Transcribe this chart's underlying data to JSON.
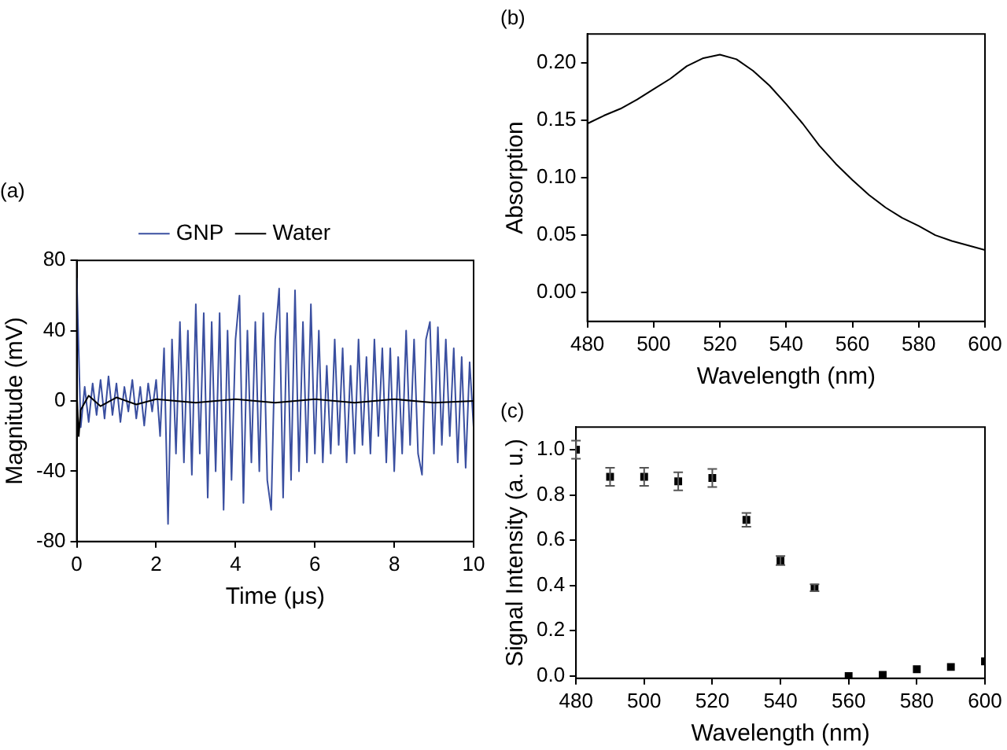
{
  "chart_data": [
    {
      "type": "line",
      "title": "(a)",
      "xlabel": "Time (μs)",
      "ylabel": "Magnitude (mV)",
      "xlim": [
        0,
        10
      ],
      "ylim": [
        -80,
        80
      ],
      "xticks": [
        0,
        2,
        4,
        6,
        8,
        10
      ],
      "yticks": [
        -80,
        -40,
        0,
        40,
        80
      ],
      "grid": false,
      "legend": "top",
      "marker": "none",
      "series": [
        {
          "name": "GNP",
          "color": "#3a4fa0",
          "x": [
            0,
            0.1,
            0.2,
            0.3,
            0.4,
            0.5,
            0.6,
            0.7,
            0.8,
            0.9,
            1,
            1.1,
            1.2,
            1.3,
            1.4,
            1.5,
            1.6,
            1.7,
            1.8,
            1.9,
            2,
            2.1,
            2.2,
            2.3,
            2.4,
            2.5,
            2.6,
            2.7,
            2.8,
            2.9,
            3,
            3.1,
            3.2,
            3.3,
            3.4,
            3.5,
            3.6,
            3.7,
            3.8,
            3.9,
            4,
            4.1,
            4.2,
            4.3,
            4.4,
            4.5,
            4.6,
            4.7,
            4.8,
            4.9,
            5,
            5.1,
            5.2,
            5.3,
            5.4,
            5.5,
            5.6,
            5.7,
            5.8,
            5.9,
            6,
            6.1,
            6.2,
            6.3,
            6.4,
            6.5,
            6.6,
            6.7,
            6.8,
            6.9,
            7,
            7.1,
            7.2,
            7.3,
            7.4,
            7.5,
            7.6,
            7.7,
            7.8,
            7.9,
            8,
            8.1,
            8.2,
            8.3,
            8.4,
            8.5,
            8.6,
            8.7,
            8.8,
            8.9,
            9,
            9.1,
            9.2,
            9.3,
            9.4,
            9.5,
            9.6,
            9.7,
            9.8,
            9.9,
            10
          ],
          "values": [
            70,
            -15,
            8,
            -12,
            10,
            -8,
            12,
            -10,
            14,
            -8,
            10,
            -12,
            8,
            -6,
            12,
            -10,
            8,
            -14,
            10,
            -6,
            12,
            -20,
            30,
            -70,
            35,
            -30,
            45,
            -35,
            40,
            -42,
            55,
            -30,
            50,
            -55,
            45,
            -40,
            50,
            -62,
            40,
            -45,
            35,
            60,
            -58,
            40,
            -35,
            45,
            -40,
            50,
            -45,
            -62,
            35,
            64,
            -55,
            50,
            -45,
            63,
            -40,
            45,
            -35,
            55,
            -30,
            40,
            -35,
            20,
            -30,
            35,
            -25,
            30,
            -35,
            20,
            -30,
            35,
            -25,
            25,
            -30,
            35,
            -20,
            30,
            -35,
            30,
            -40,
            25,
            -30,
            40,
            -25,
            35,
            -30,
            -42,
            35,
            45,
            -30,
            42,
            -25,
            35,
            -20,
            30,
            -35,
            25,
            -38,
            22,
            -15
          ]
        },
        {
          "name": "Water",
          "color": "#000000",
          "x": [
            0,
            0.05,
            0.1,
            0.3,
            0.6,
            1,
            1.5,
            2,
            3,
            4,
            5,
            6,
            7,
            8,
            9,
            10
          ],
          "values": [
            5,
            -20,
            -5,
            3,
            -3,
            2,
            -2,
            1,
            -1,
            1,
            -1,
            1,
            -1,
            1,
            -1,
            0
          ]
        }
      ]
    },
    {
      "type": "line",
      "title": "(b)",
      "xlabel": "Wavelength (nm)",
      "ylabel": "Absorption",
      "xlim": [
        480,
        600
      ],
      "ylim": [
        -0.025,
        0.225
      ],
      "xticks": [
        480,
        500,
        520,
        540,
        560,
        580,
        600
      ],
      "yticks": [
        {
          "value": 0,
          "label": "0.00"
        },
        {
          "value": 0.05,
          "label": "0.05"
        },
        {
          "value": 0.1,
          "label": "0.10"
        },
        {
          "value": 0.15,
          "label": "0.15"
        },
        {
          "value": 0.2,
          "label": "0.20"
        }
      ],
      "grid": false,
      "legend": false,
      "marker": "none",
      "series": [
        {
          "color": "#000000",
          "x": [
            480,
            485,
            490,
            495,
            500,
            505,
            510,
            515,
            520,
            525,
            530,
            535,
            540,
            545,
            550,
            555,
            560,
            565,
            570,
            575,
            580,
            585,
            590,
            595,
            600
          ],
          "values": [
            0.147,
            0.154,
            0.16,
            0.168,
            0.177,
            0.186,
            0.197,
            0.204,
            0.207,
            0.203,
            0.193,
            0.18,
            0.164,
            0.147,
            0.128,
            0.112,
            0.098,
            0.085,
            0.074,
            0.065,
            0.058,
            0.05,
            0.045,
            0.041,
            0.037
          ]
        }
      ]
    },
    {
      "type": "scatter",
      "title": "(c)",
      "xlabel": "Wavelength (nm)",
      "ylabel": "Signal Intensity (a. u.)",
      "xlim": [
        480,
        600
      ],
      "ylim": [
        -0.01,
        1.1
      ],
      "xticks": [
        480,
        500,
        520,
        540,
        560,
        580,
        600
      ],
      "yticks": [
        {
          "value": 0,
          "label": "0.0"
        },
        {
          "value": 0.2,
          "label": "0.2"
        },
        {
          "value": 0.4,
          "label": "0.4"
        },
        {
          "value": 0.6,
          "label": "0.6"
        },
        {
          "value": 0.8,
          "label": "0.8"
        },
        {
          "value": 1,
          "label": "1.0"
        }
      ],
      "grid": false,
      "legend": false,
      "marker": "square",
      "series": [
        {
          "color": "#000000",
          "x": [
            480,
            490,
            500,
            510,
            520,
            530,
            540,
            550,
            560,
            570,
            580,
            590,
            600
          ],
          "values": [
            1,
            0.88,
            0.88,
            0.86,
            0.875,
            0.69,
            0.51,
            0.39,
            0,
            0.005,
            0.03,
            0.04,
            0.065
          ],
          "errors": [
            0.04,
            0.04,
            0.04,
            0.04,
            0.04,
            0.03,
            0.02,
            0.015,
            null,
            null,
            null,
            null,
            null
          ]
        }
      ]
    }
  ]
}
